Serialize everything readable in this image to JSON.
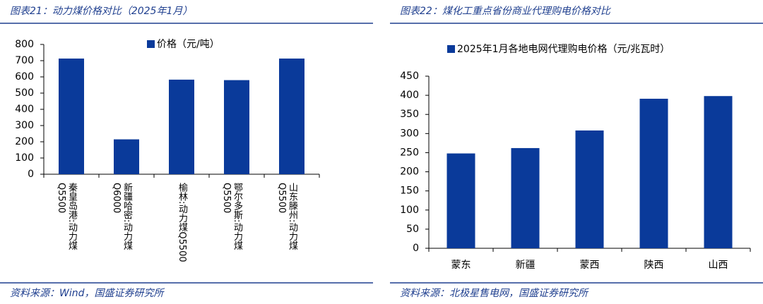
{
  "chart_data": [
    {
      "type": "bar",
      "title": "图表21：动力煤价格对比（2025年1月）",
      "categories": [
        "秦皇岛港:动力煤Q5500",
        "新疆哈密:动力煤Q6000",
        "榆林:动力煤Q5500",
        "鄂尔多斯:动力煤Q5500",
        "山东滕州:动力煤Q5500"
      ],
      "series": [
        {
          "name": "价格（元/吨）",
          "color": "#0a3a9a",
          "values": [
            713,
            215,
            583,
            580,
            713
          ]
        }
      ],
      "ylim": [
        0,
        800
      ],
      "yticks": [
        0,
        100,
        200,
        300,
        400,
        500,
        600,
        700,
        800
      ],
      "source": "资料来源：Wind，国盛证券研究所"
    },
    {
      "type": "bar",
      "title": "图表22：煤化工重点省份商业代理购电价格对比",
      "categories": [
        "蒙东",
        "新疆",
        "蒙西",
        "陕西",
        "山西"
      ],
      "series": [
        {
          "name": "2025年1月各地电网代理购电价格（元/兆瓦时）",
          "color": "#0a3a9a",
          "values": [
            248,
            262,
            308,
            391,
            398
          ]
        }
      ],
      "ylim": [
        0,
        450
      ],
      "yticks": [
        0,
        50,
        100,
        150,
        200,
        250,
        300,
        350,
        400,
        450
      ],
      "source": "资料来源：北极星售电网，国盛证券研究所"
    }
  ]
}
